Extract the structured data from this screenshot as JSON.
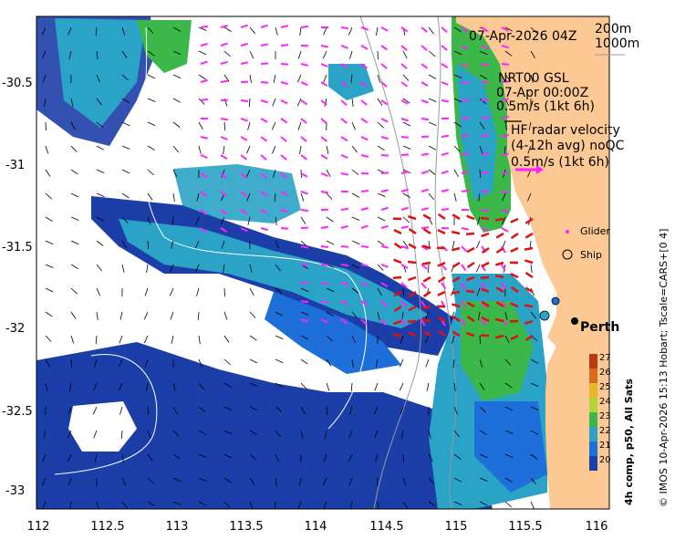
{
  "header": {
    "date": "07-Apr-2026 04Z"
  },
  "contours": {
    "label_1": "200m",
    "label_2": "1000m"
  },
  "model": {
    "name": "NRT00 GSL",
    "time": "07-Apr 00:00Z",
    "scale": "0.5m/s (1kt 6h)"
  },
  "radar": {
    "title": "HF radar velocity",
    "subtitle": "(4-12h avg) noQC",
    "scale": "0.5m/s (1kt 6h)"
  },
  "legend": {
    "glider": "Glider",
    "ship": "Ship"
  },
  "city": {
    "name": "Perth"
  },
  "colorbar": {
    "title": "4h comp, p50, All Sats",
    "ticks": [
      "27",
      "26",
      "25",
      "24",
      "23",
      "22",
      "21",
      "20"
    ],
    "colors": [
      "#b83a12",
      "#d96a1c",
      "#eab42b",
      "#b5d33a",
      "#3cb84a",
      "#2aa3c7",
      "#1e6fd9",
      "#1c3ea8"
    ]
  },
  "credit": "© IMOS 10-Apr-2026 15:13 Hobart; Tscale=CARS+[0 4]",
  "axes": {
    "x_ticks": [
      "112",
      "112.5",
      "113",
      "113.5",
      "114",
      "114.5",
      "115",
      "115.5",
      "116"
    ],
    "y_ticks": [
      "-30.5",
      "-31",
      "-31.5",
      "-32",
      "-32.5",
      "-33"
    ]
  },
  "style": {
    "land": "#fcc995",
    "model_arrows": "#ff22ff",
    "radar_arrows": "#e01010",
    "sst_low": "#1c3ea8",
    "sst_mid": "#2aa3c7",
    "sst_high": "#3cb84a"
  }
}
